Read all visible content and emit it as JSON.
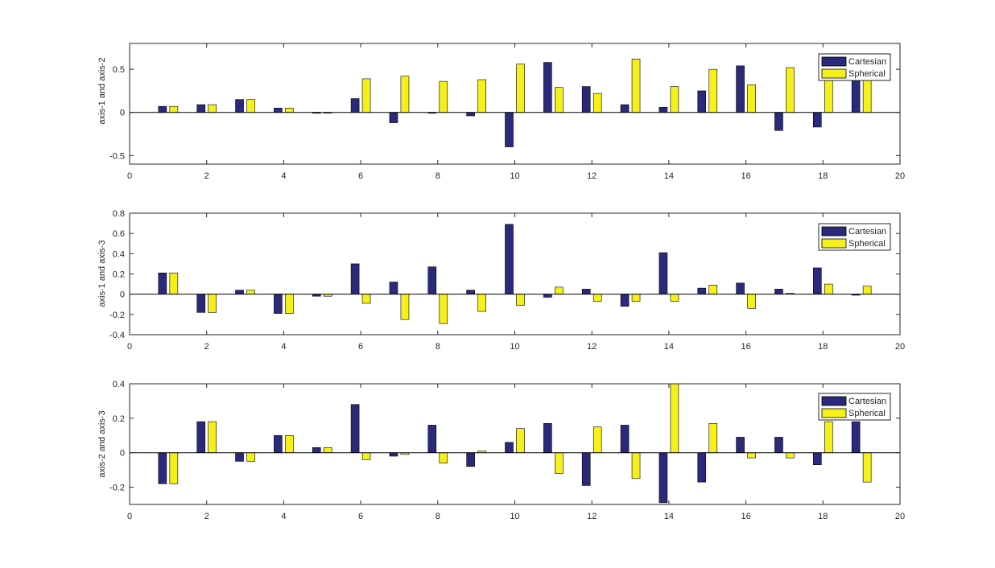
{
  "colors": {
    "cartesian": "#2b2a7a",
    "spherical": "#f5f01a",
    "axis": "#262626",
    "background": "#ffffff"
  },
  "chart_data": [
    {
      "type": "bar",
      "ylabel": "axis-1 and axis-2",
      "xlim": [
        0,
        20
      ],
      "ylim": [
        -0.6,
        0.8
      ],
      "xticks": [
        0,
        2,
        4,
        6,
        8,
        10,
        12,
        14,
        16,
        18,
        20
      ],
      "yticks": [
        -0.5,
        0,
        0.5
      ],
      "ytick_labels": [
        "-0.5",
        "0",
        "0.5"
      ],
      "legend": "top-right",
      "categories": [
        1,
        2,
        3,
        4,
        5,
        6,
        7,
        8,
        9,
        10,
        11,
        12,
        13,
        14,
        15,
        16,
        17,
        18,
        19
      ],
      "series": [
        {
          "name": "Cartesian",
          "values": [
            0.07,
            0.09,
            0.15,
            0.05,
            -0.01,
            0.16,
            -0.12,
            -0.01,
            -0.04,
            -0.4,
            0.58,
            0.3,
            0.09,
            0.06,
            0.25,
            0.54,
            -0.21,
            -0.17,
            0.4
          ]
        },
        {
          "name": "Spherical",
          "values": [
            0.07,
            0.09,
            0.15,
            0.05,
            -0.01,
            0.39,
            0.42,
            0.36,
            0.38,
            0.56,
            0.29,
            0.22,
            0.62,
            0.3,
            0.5,
            0.32,
            0.52,
            0.42,
            0.4
          ]
        }
      ]
    },
    {
      "type": "bar",
      "ylabel": "axis-1 and axis-3",
      "xlim": [
        0,
        20
      ],
      "ylim": [
        -0.4,
        0.8
      ],
      "xticks": [
        0,
        2,
        4,
        6,
        8,
        10,
        12,
        14,
        16,
        18,
        20
      ],
      "yticks": [
        -0.4,
        -0.2,
        0,
        0.2,
        0.4,
        0.6,
        0.8
      ],
      "ytick_labels": [
        "-0.4",
        "-0.2",
        "0",
        "0.2",
        "0.4",
        "0.6",
        "0.8"
      ],
      "legend": "top-right",
      "categories": [
        1,
        2,
        3,
        4,
        5,
        6,
        7,
        8,
        9,
        10,
        11,
        12,
        13,
        14,
        15,
        16,
        17,
        18,
        19
      ],
      "series": [
        {
          "name": "Cartesian",
          "values": [
            0.21,
            -0.18,
            0.04,
            -0.19,
            -0.02,
            0.3,
            0.12,
            0.27,
            0.04,
            0.69,
            -0.03,
            0.05,
            -0.12,
            0.41,
            0.06,
            0.11,
            0.05,
            0.26,
            -0.01
          ]
        },
        {
          "name": "Spherical",
          "values": [
            0.21,
            -0.18,
            0.04,
            -0.19,
            -0.02,
            -0.09,
            -0.25,
            -0.29,
            -0.17,
            -0.11,
            0.07,
            -0.07,
            -0.07,
            -0.07,
            0.09,
            -0.14,
            0.01,
            0.1,
            0.08
          ]
        }
      ]
    },
    {
      "type": "bar",
      "ylabel": "axis-2 and axis-3",
      "xlim": [
        0,
        20
      ],
      "ylim": [
        -0.3,
        0.4
      ],
      "xticks": [
        0,
        2,
        4,
        6,
        8,
        10,
        12,
        14,
        16,
        18,
        20
      ],
      "yticks": [
        -0.2,
        0,
        0.2,
        0.4
      ],
      "ytick_labels": [
        "-0.2",
        "0",
        "0.2",
        "0.4"
      ],
      "legend": "top-right",
      "categories": [
        1,
        2,
        3,
        4,
        5,
        6,
        7,
        8,
        9,
        10,
        11,
        12,
        13,
        14,
        15,
        16,
        17,
        18,
        19
      ],
      "series": [
        {
          "name": "Cartesian",
          "values": [
            -0.18,
            0.18,
            -0.05,
            0.1,
            0.03,
            0.28,
            -0.02,
            0.16,
            -0.08,
            0.06,
            0.17,
            -0.19,
            0.16,
            -0.29,
            -0.17,
            0.09,
            0.09,
            -0.07,
            0.18
          ]
        },
        {
          "name": "Spherical",
          "values": [
            -0.18,
            0.18,
            -0.05,
            0.1,
            0.03,
            -0.04,
            -0.01,
            -0.06,
            0.01,
            0.14,
            -0.12,
            0.15,
            -0.15,
            0.4,
            0.17,
            -0.03,
            -0.03,
            0.18,
            -0.17
          ]
        }
      ]
    }
  ]
}
